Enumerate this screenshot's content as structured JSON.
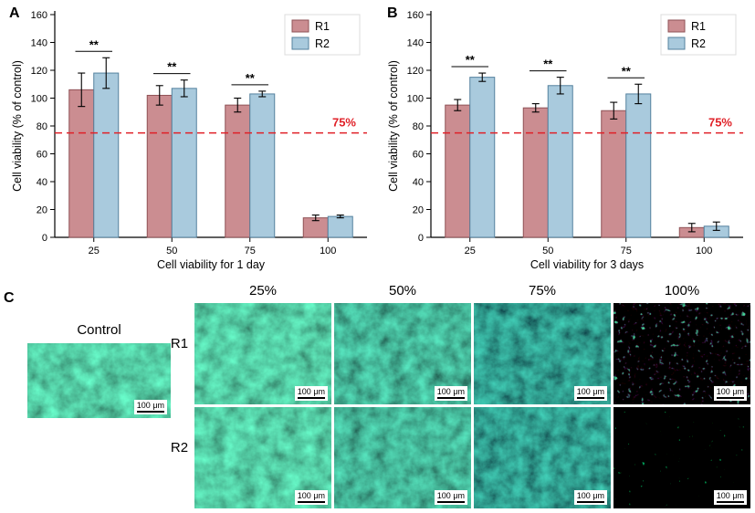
{
  "panel_a": {
    "label": "A"
  },
  "panel_b": {
    "label": "B"
  },
  "panel_c": {
    "label": "C"
  },
  "chart_data": [
    {
      "type": "bar",
      "panel": "A",
      "title": "",
      "xlabel": "Cell viability for 1 day",
      "ylabel": "Cell viability (% of control)",
      "ylim": [
        0,
        160
      ],
      "yticks": [
        0,
        20,
        40,
        60,
        80,
        100,
        120,
        140,
        160
      ],
      "categories": [
        "25",
        "50",
        "75",
        "100"
      ],
      "series": [
        {
          "name": "R1",
          "fill": "#cb8d91",
          "border": "#8f5256",
          "values": [
            106,
            102,
            95,
            14
          ],
          "errors": [
            12,
            7,
            5,
            2
          ]
        },
        {
          "name": "R2",
          "fill": "#a9cadd",
          "border": "#54819e",
          "values": [
            118,
            107,
            103,
            15
          ],
          "errors": [
            11,
            6,
            2,
            1
          ]
        }
      ],
      "significance": [
        "**",
        "**",
        "**",
        null
      ],
      "threshold": {
        "value": 75,
        "label": "75%",
        "color": "#e02128"
      },
      "legend_position": "top-right",
      "grid": false
    },
    {
      "type": "bar",
      "panel": "B",
      "title": "",
      "xlabel": "Cell viability for 3 days",
      "ylabel": "Cell viability (% of control)",
      "ylim": [
        0,
        160
      ],
      "yticks": [
        0,
        20,
        40,
        60,
        80,
        100,
        120,
        140,
        160
      ],
      "categories": [
        "25",
        "50",
        "75",
        "100"
      ],
      "series": [
        {
          "name": "R1",
          "fill": "#cb8d91",
          "border": "#8f5256",
          "values": [
            95,
            93,
            91,
            7
          ],
          "errors": [
            4,
            3,
            6,
            3
          ]
        },
        {
          "name": "R2",
          "fill": "#a9cadd",
          "border": "#54819e",
          "values": [
            115,
            109,
            103,
            8
          ],
          "errors": [
            3,
            6,
            7,
            3
          ]
        }
      ],
      "significance": [
        "**",
        "**",
        "**",
        null
      ],
      "threshold": {
        "value": 75,
        "label": "75%",
        "color": "#e02128"
      },
      "legend_position": "top-right",
      "grid": false
    }
  ],
  "micrographs": {
    "control_label": "Control",
    "column_labels": [
      "25%",
      "50%",
      "75%",
      "100%"
    ],
    "row_labels": [
      "R1",
      "R2"
    ],
    "scale_bar_label": "100 μm"
  }
}
